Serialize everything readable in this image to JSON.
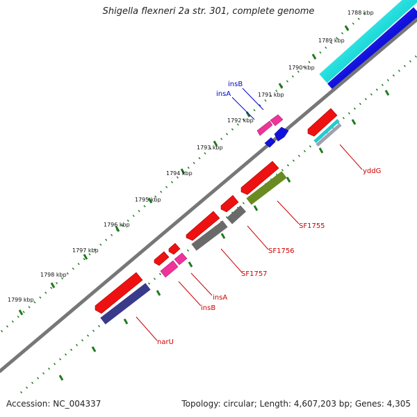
{
  "title": "Shigella flexneri 2a str. 301, complete genome",
  "footer": {
    "accession": "Accession: NC_004337",
    "summary": "Topology: circular; Length: 4,607,203 bp; Genes: 4,305"
  },
  "colors": {
    "backbone": "#8a8a8a",
    "tick": "#1e7a1e",
    "cds_forward": "#ee1111",
    "cds_reverse": "#ee1111",
    "transposon": "#ee3399",
    "label_forward": "#0000cc",
    "label_reverse": "#cc0000",
    "cyan_track": "#22dddd",
    "blue_track": "#1111dd",
    "gray_track": "#707070",
    "green_track": "#6a8a22",
    "navy_track": "#3a3a8a"
  },
  "scale": {
    "unit": "kbp",
    "labels": [
      "1788 kbp",
      "1789 kbp",
      "1790 kbp",
      "1791 kbp",
      "1792 kbp",
      "1793 kbp",
      "1794 kbp",
      "1795 kbp",
      "1796 kbp",
      "1797 kbp",
      "1798 kbp",
      "1799 kbp"
    ]
  },
  "features": {
    "forward_labels": [
      "insB",
      "insA"
    ],
    "reverse_labels": [
      "yddG",
      "SF1755",
      "SF1756",
      "SF1757",
      "insA",
      "insB",
      "narU"
    ]
  }
}
